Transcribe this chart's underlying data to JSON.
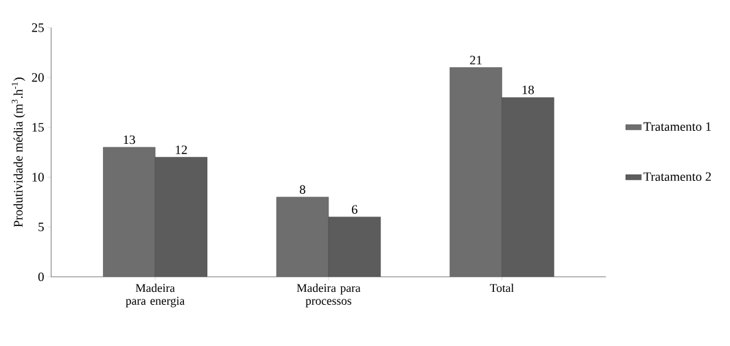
{
  "chart_data": {
    "type": "bar",
    "ylabel": "Produtividade média (m$^{3}$.h$^{-1}$)",
    "categories": [
      "Madeira para energia",
      "Madeira para processos",
      "Total"
    ],
    "series": [
      {
        "name": "Tratamento 1",
        "color": "#6e6e6e",
        "values": [
          13,
          8,
          21
        ]
      },
      {
        "name": "Tratamento 2",
        "color": "#5c5c5c",
        "values": [
          12,
          6,
          18
        ]
      }
    ],
    "ylim": [
      0,
      25
    ],
    "yticks": [
      0,
      5,
      10,
      15,
      20,
      25
    ],
    "data_labels": true,
    "legend": "right"
  }
}
